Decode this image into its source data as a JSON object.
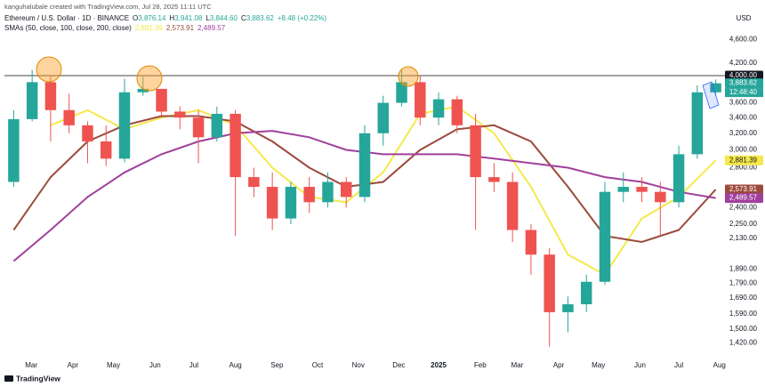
{
  "chart_data": {
    "type": "candlestick",
    "credit": "kanguhalubale created with TradingView.com, Jul 28, 2025 11:11 UTC",
    "symbol": "Ethereum / U.S. Dollar · 1D · BINANCE",
    "ohlc": [
      {
        "key": "O",
        "value": "3,876.14"
      },
      {
        "key": "H",
        "value": "3,941.08"
      },
      {
        "key": "L",
        "value": "3,844.60"
      },
      {
        "key": "C",
        "value": "3,883.62"
      }
    ],
    "change": "+8.48 (+0.22%)",
    "indicator": "SMAs (50, close, 100, close, 200, close)",
    "currency": "USD",
    "countdown": "12:48:40",
    "footer": "TradingView",
    "up_color": "#26a69a",
    "down_color": "#ef5350",
    "log_scale": true,
    "grid": false,
    "xlim": [
      0,
      78
    ],
    "ylim": [
      1328,
      5270
    ],
    "x": [
      1,
      3,
      5,
      7,
      9,
      11,
      13,
      15,
      17,
      19,
      21,
      23,
      25,
      27,
      29,
      31,
      33,
      35,
      37,
      39,
      41,
      43,
      45,
      47,
      49,
      51,
      53,
      55,
      57,
      59,
      61,
      63,
      65,
      67,
      69,
      71,
      73,
      75,
      77
    ],
    "open": [
      2650,
      3380,
      3900,
      3500,
      3300,
      3100,
      2900,
      3750,
      3800,
      3480,
      3400,
      3150,
      3450,
      2700,
      2600,
      2300,
      2600,
      2450,
      2650,
      2500,
      3200,
      3600,
      3900,
      3400,
      3650,
      3300,
      2700,
      2650,
      2200,
      2000,
      1600,
      1650,
      1800,
      2550,
      2600,
      2550,
      2450,
      2950,
      3750
    ],
    "high": [
      3500,
      4090,
      4000,
      3730,
      3350,
      3300,
      3950,
      3980,
      3800,
      3550,
      3500,
      3550,
      3500,
      2800,
      2750,
      2650,
      2700,
      2750,
      2700,
      3300,
      3700,
      4100,
      4000,
      3750,
      3700,
      3450,
      2850,
      2750,
      2250,
      2050,
      1700,
      1850,
      2650,
      2750,
      2700,
      2650,
      3050,
      3850,
      3941
    ],
    "low": [
      2600,
      3350,
      3100,
      3200,
      2850,
      2820,
      2860,
      3700,
      3400,
      3250,
      2850,
      3100,
      2150,
      2500,
      2200,
      2250,
      2350,
      2400,
      2400,
      2450,
      3050,
      3550,
      3300,
      3300,
      3200,
      2200,
      2550,
      2100,
      1850,
      1400,
      1480,
      1600,
      1780,
      2450,
      2450,
      2150,
      2400,
      2900,
      3700
    ],
    "close": [
      3380,
      3900,
      3500,
      3300,
      3100,
      2900,
      3750,
      3800,
      3480,
      3400,
      3150,
      3450,
      2700,
      2600,
      2300,
      2600,
      2450,
      2650,
      2500,
      3200,
      3600,
      3900,
      3400,
      3650,
      3300,
      2700,
      2650,
      2200,
      2000,
      1600,
      1650,
      1800,
      2550,
      2600,
      2550,
      2450,
      2950,
      3750,
      3883.62
    ],
    "series": [
      {
        "color": "#f5e94a",
        "last_label": "2,881.39",
        "x": [
          1,
          5,
          9,
          13,
          17,
          21,
          25,
          29,
          33,
          37,
          41,
          45,
          49,
          53,
          57,
          61,
          65,
          69,
          73,
          77
        ],
        "values": [
          null,
          3300,
          3500,
          3250,
          3400,
          3500,
          3300,
          2800,
          2500,
          2450,
          2750,
          3450,
          3550,
          3200,
          2600,
          2000,
          1850,
          2300,
          2500,
          2881.39
        ]
      },
      {
        "color": "#9c4a3c",
        "last_label": "2,573.91",
        "x": [
          1,
          5,
          9,
          13,
          17,
          21,
          25,
          29,
          33,
          37,
          41,
          45,
          49,
          53,
          57,
          61,
          65,
          69,
          73,
          77
        ],
        "values": [
          2200,
          2700,
          3100,
          3300,
          3420,
          3420,
          3350,
          3100,
          2800,
          2600,
          2650,
          3000,
          3250,
          3300,
          3100,
          2600,
          2150,
          2100,
          2200,
          2573.91
        ]
      },
      {
        "color": "#a0409c",
        "last_label": "2,489.57",
        "x": [
          1,
          5,
          9,
          13,
          17,
          21,
          25,
          29,
          33,
          37,
          41,
          45,
          49,
          53,
          57,
          61,
          65,
          69,
          73,
          77
        ],
        "values": [
          1950,
          2200,
          2500,
          2750,
          2950,
          3100,
          3200,
          3230,
          3150,
          3000,
          2950,
          2950,
          2950,
          2900,
          2850,
          2800,
          2700,
          2650,
          2550,
          2489.57
        ]
      }
    ],
    "hline": {
      "value": 4000,
      "label": "4,000.00"
    },
    "yticks": [
      {
        "value": 4600,
        "label": "4,600.00"
      },
      {
        "value": 4200,
        "label": "4,200.00"
      },
      {
        "value": 3600,
        "label": "3,600.00"
      },
      {
        "value": 3400,
        "label": "3,400.00"
      },
      {
        "value": 3200,
        "label": "3,200.00"
      },
      {
        "value": 3000,
        "label": "3,000.00"
      },
      {
        "value": 2800,
        "label": "2,800.00"
      },
      {
        "value": 2400,
        "label": "2,400.00"
      },
      {
        "value": 2250,
        "label": "2,250.00"
      },
      {
        "value": 2130,
        "label": "2,130.00"
      },
      {
        "value": 1890,
        "label": "1,890.00"
      },
      {
        "value": 1790,
        "label": "1,790.00"
      },
      {
        "value": 1690,
        "label": "1,690.00"
      },
      {
        "value": 1590,
        "label": "1,590.00"
      },
      {
        "value": 1500,
        "label": "1,500.00"
      },
      {
        "value": 1420,
        "label": "1,420.00"
      }
    ],
    "xticks": [
      {
        "value": 2.9,
        "label": "Mar"
      },
      {
        "value": 7.4,
        "label": "Apr"
      },
      {
        "value": 11.8,
        "label": "May"
      },
      {
        "value": 16.3,
        "label": "Jun"
      },
      {
        "value": 20.5,
        "label": "Jul"
      },
      {
        "value": 25.0,
        "label": "Aug"
      },
      {
        "value": 29.5,
        "label": "Sep"
      },
      {
        "value": 33.9,
        "label": "Oct"
      },
      {
        "value": 38.3,
        "label": "Nov"
      },
      {
        "value": 42.7,
        "label": "Dec"
      },
      {
        "value": 47.0,
        "label": "2025"
      },
      {
        "value": 51.5,
        "label": "Feb"
      },
      {
        "value": 55.5,
        "label": "Mar"
      },
      {
        "value": 60.0,
        "label": "Apr"
      },
      {
        "value": 64.3,
        "label": "May"
      },
      {
        "value": 68.8,
        "label": "Jun"
      },
      {
        "value": 73.0,
        "label": "Jul"
      },
      {
        "value": 77.4,
        "label": "Aug"
      }
    ]
  }
}
